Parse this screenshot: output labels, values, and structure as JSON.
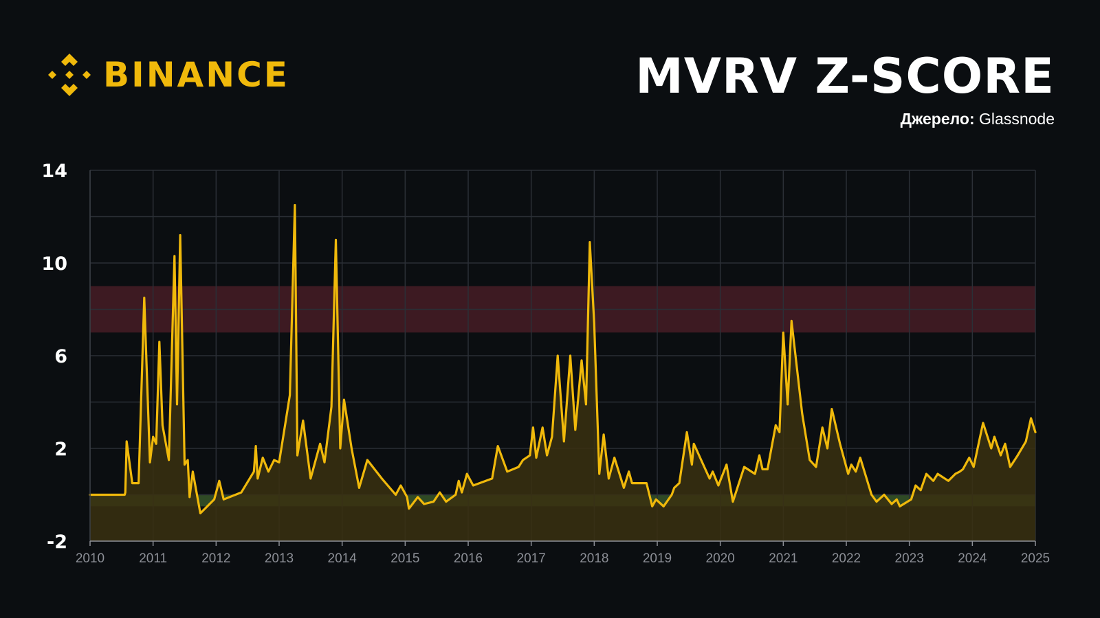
{
  "brand": {
    "name": "BINANCE",
    "color": "#f0b90b",
    "icon": "binance-diamond-icon"
  },
  "title": "MVRV Z-SCORE",
  "source": {
    "label": "Джерело:",
    "value": "Glassnode"
  },
  "colors": {
    "background": "#0b0e11",
    "line": "#f0b90b",
    "area_fill": "#3a3011",
    "red_zone": "#3d1a22",
    "green_zone": "#2f4a25",
    "grid": "#2b2f36"
  },
  "chart_data": {
    "type": "area",
    "title": "MVRV Z-SCORE",
    "xlabel": "",
    "ylabel": "",
    "xlim": [
      2010,
      2025
    ],
    "ylim": [
      -2,
      14
    ],
    "x_ticks": [
      "2010",
      "2011",
      "2012",
      "2013",
      "2014",
      "2015",
      "2016",
      "2017",
      "2018",
      "2019",
      "2020",
      "2021",
      "2022",
      "2023",
      "2024",
      "2025"
    ],
    "y_ticks": [
      {
        "value": -2,
        "label": "-2"
      },
      {
        "value": 2,
        "label": "2"
      },
      {
        "value": 6,
        "label": "6"
      },
      {
        "value": 10,
        "label": "10"
      },
      {
        "value": 14,
        "label": "14"
      }
    ],
    "grid": true,
    "zones": [
      {
        "name": "red",
        "from": 7,
        "to": 9
      },
      {
        "name": "green",
        "from": -0.5,
        "to": 0
      }
    ],
    "series": [
      {
        "points": [
          [
            2010.0,
            0
          ],
          [
            2010.55,
            0
          ],
          [
            2010.56,
            0.1
          ],
          [
            2010.58,
            2.3
          ],
          [
            2010.67,
            0.5
          ],
          [
            2010.77,
            0.5
          ],
          [
            2010.86,
            8.5
          ],
          [
            2010.95,
            1.4
          ],
          [
            2011.0,
            2.5
          ],
          [
            2011.05,
            2.2
          ],
          [
            2011.1,
            6.6
          ],
          [
            2011.15,
            3.0
          ],
          [
            2011.25,
            1.5
          ],
          [
            2011.34,
            10.3
          ],
          [
            2011.38,
            3.9
          ],
          [
            2011.43,
            11.2
          ],
          [
            2011.5,
            1.3
          ],
          [
            2011.55,
            1.5
          ],
          [
            2011.58,
            -0.1
          ],
          [
            2011.63,
            1.0
          ],
          [
            2011.75,
            -0.8
          ],
          [
            2011.97,
            -0.2
          ],
          [
            2012.05,
            0.6
          ],
          [
            2012.12,
            -0.2
          ],
          [
            2012.4,
            0.1
          ],
          [
            2012.6,
            1.0
          ],
          [
            2012.63,
            2.1
          ],
          [
            2012.66,
            0.7
          ],
          [
            2012.74,
            1.6
          ],
          [
            2012.83,
            1.0
          ],
          [
            2012.92,
            1.5
          ],
          [
            2013.0,
            1.4
          ],
          [
            2013.17,
            4.3
          ],
          [
            2013.25,
            12.5
          ],
          [
            2013.29,
            1.7
          ],
          [
            2013.38,
            3.2
          ],
          [
            2013.5,
            0.7
          ],
          [
            2013.65,
            2.2
          ],
          [
            2013.72,
            1.4
          ],
          [
            2013.83,
            3.8
          ],
          [
            2013.9,
            11.0
          ],
          [
            2013.97,
            2.0
          ],
          [
            2014.03,
            4.1
          ],
          [
            2014.15,
            2.0
          ],
          [
            2014.27,
            0.3
          ],
          [
            2014.4,
            1.5
          ],
          [
            2014.63,
            0.7
          ],
          [
            2014.85,
            0
          ],
          [
            2014.93,
            0.4
          ],
          [
            2015.03,
            -0.1
          ],
          [
            2015.06,
            -0.6
          ],
          [
            2015.2,
            -0.1
          ],
          [
            2015.3,
            -0.4
          ],
          [
            2015.45,
            -0.3
          ],
          [
            2015.55,
            0.1
          ],
          [
            2015.65,
            -0.3
          ],
          [
            2015.8,
            0
          ],
          [
            2015.85,
            0.6
          ],
          [
            2015.9,
            0.1
          ],
          [
            2015.98,
            0.9
          ],
          [
            2016.08,
            0.4
          ],
          [
            2016.38,
            0.7
          ],
          [
            2016.47,
            2.1
          ],
          [
            2016.62,
            1.0
          ],
          [
            2016.8,
            1.2
          ],
          [
            2016.87,
            1.5
          ],
          [
            2016.98,
            1.7
          ],
          [
            2017.03,
            2.9
          ],
          [
            2017.08,
            1.6
          ],
          [
            2017.18,
            2.9
          ],
          [
            2017.25,
            1.7
          ],
          [
            2017.33,
            2.5
          ],
          [
            2017.42,
            6.0
          ],
          [
            2017.52,
            2.3
          ],
          [
            2017.62,
            6.0
          ],
          [
            2017.7,
            2.8
          ],
          [
            2017.8,
            5.8
          ],
          [
            2017.87,
            3.9
          ],
          [
            2017.93,
            10.9
          ],
          [
            2018.0,
            7.4
          ],
          [
            2018.08,
            0.9
          ],
          [
            2018.15,
            2.6
          ],
          [
            2018.23,
            0.7
          ],
          [
            2018.32,
            1.6
          ],
          [
            2018.47,
            0.3
          ],
          [
            2018.55,
            1.0
          ],
          [
            2018.6,
            0.5
          ],
          [
            2018.83,
            0.5
          ],
          [
            2018.92,
            -0.5
          ],
          [
            2018.98,
            -0.2
          ],
          [
            2019.1,
            -0.5
          ],
          [
            2019.23,
            0
          ],
          [
            2019.27,
            0.3
          ],
          [
            2019.35,
            0.5
          ],
          [
            2019.47,
            2.7
          ],
          [
            2019.55,
            1.3
          ],
          [
            2019.58,
            2.2
          ],
          [
            2019.83,
            0.7
          ],
          [
            2019.88,
            1.0
          ],
          [
            2019.97,
            0.4
          ],
          [
            2020.1,
            1.3
          ],
          [
            2020.2,
            -0.3
          ],
          [
            2020.38,
            1.2
          ],
          [
            2020.55,
            0.9
          ],
          [
            2020.62,
            1.7
          ],
          [
            2020.67,
            1.1
          ],
          [
            2020.75,
            1.1
          ],
          [
            2020.88,
            3.0
          ],
          [
            2020.94,
            2.7
          ],
          [
            2021.0,
            7.0
          ],
          [
            2021.07,
            3.9
          ],
          [
            2021.13,
            7.5
          ],
          [
            2021.3,
            3.5
          ],
          [
            2021.42,
            1.5
          ],
          [
            2021.52,
            1.2
          ],
          [
            2021.62,
            2.9
          ],
          [
            2021.7,
            2.0
          ],
          [
            2021.77,
            3.7
          ],
          [
            2021.9,
            2.2
          ],
          [
            2022.03,
            0.9
          ],
          [
            2022.08,
            1.3
          ],
          [
            2022.15,
            1.0
          ],
          [
            2022.22,
            1.6
          ],
          [
            2022.4,
            0
          ],
          [
            2022.48,
            -0.3
          ],
          [
            2022.6,
            0
          ],
          [
            2022.72,
            -0.4
          ],
          [
            2022.8,
            -0.2
          ],
          [
            2022.85,
            -0.5
          ],
          [
            2022.97,
            -0.3
          ],
          [
            2023.03,
            -0.2
          ],
          [
            2023.1,
            0.4
          ],
          [
            2023.18,
            0.2
          ],
          [
            2023.27,
            0.9
          ],
          [
            2023.38,
            0.6
          ],
          [
            2023.45,
            0.9
          ],
          [
            2023.62,
            0.6
          ],
          [
            2023.73,
            0.9
          ],
          [
            2023.8,
            1.0
          ],
          [
            2023.85,
            1.1
          ],
          [
            2023.95,
            1.6
          ],
          [
            2024.02,
            1.2
          ],
          [
            2024.17,
            3.1
          ],
          [
            2024.3,
            2.0
          ],
          [
            2024.35,
            2.5
          ],
          [
            2024.45,
            1.7
          ],
          [
            2024.52,
            2.2
          ],
          [
            2024.6,
            1.2
          ],
          [
            2024.72,
            1.7
          ],
          [
            2024.85,
            2.3
          ],
          [
            2024.93,
            3.3
          ],
          [
            2025.0,
            2.7
          ]
        ]
      }
    ]
  }
}
